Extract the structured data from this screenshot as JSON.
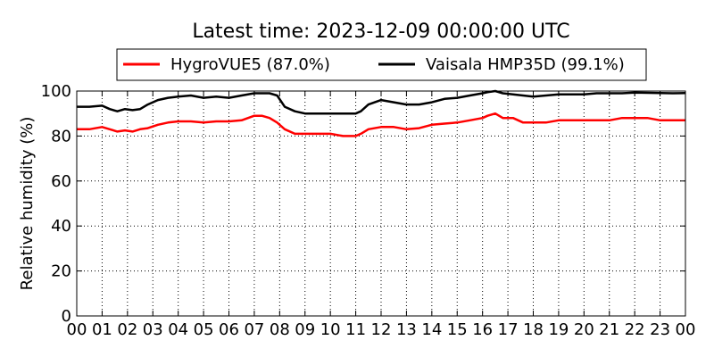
{
  "chart_data": {
    "type": "line",
    "title": "Latest time: 2023-12-09 00:00:00 UTC",
    "xlabel": "",
    "ylabel": "Relative humidity (%)",
    "xlim": [
      0,
      24
    ],
    "ylim": [
      0,
      100
    ],
    "grid": true,
    "legend_placement": "top-center",
    "x_tick_labels": [
      "00",
      "01",
      "02",
      "03",
      "04",
      "05",
      "06",
      "07",
      "08",
      "09",
      "10",
      "11",
      "12",
      "13",
      "14",
      "15",
      "16",
      "17",
      "18",
      "19",
      "20",
      "21",
      "22",
      "23",
      "00"
    ],
    "y_ticks": [
      0,
      20,
      40,
      60,
      80,
      100
    ],
    "series": [
      {
        "name": "HygroVUE5 (87.0%)",
        "color": "#ff0000",
        "x": [
          0,
          0.5,
          1,
          1.3,
          1.6,
          1.9,
          2.2,
          2.5,
          2.8,
          3.2,
          3.6,
          4,
          4.5,
          5,
          5.5,
          6,
          6.5,
          7,
          7.3,
          7.6,
          7.9,
          8.2,
          8.6,
          9,
          9.5,
          10,
          10.5,
          11,
          11.2,
          11.5,
          12,
          12.5,
          13,
          13.5,
          14,
          14.5,
          15,
          15.5,
          16,
          16.2,
          16.5,
          16.8,
          17.2,
          17.6,
          18,
          18.5,
          19,
          19.5,
          20,
          20.5,
          21,
          21.5,
          22,
          22.5,
          23,
          23.5,
          24
        ],
        "y": [
          83,
          83,
          84,
          83,
          82,
          82.5,
          82,
          83,
          83.5,
          85,
          86,
          86.5,
          86.5,
          86,
          86.5,
          86.5,
          87,
          89,
          89,
          88,
          86,
          83,
          81,
          81,
          81,
          81,
          80,
          80,
          81,
          83,
          84,
          84,
          83,
          83.5,
          85,
          85.5,
          86,
          87,
          88,
          89,
          90,
          88,
          88,
          86,
          86,
          86,
          87,
          87,
          87,
          87,
          87,
          88,
          88,
          88,
          87,
          87,
          87
        ]
      },
      {
        "name": "Vaisala HMP35D (99.1%)",
        "color": "#000000",
        "x": [
          0,
          0.5,
          1,
          1.3,
          1.6,
          1.9,
          2.2,
          2.5,
          2.8,
          3.2,
          3.6,
          4,
          4.5,
          5,
          5.5,
          6,
          6.5,
          7,
          7.3,
          7.6,
          7.9,
          8.2,
          8.6,
          9,
          9.5,
          10,
          10.5,
          11,
          11.2,
          11.5,
          12,
          12.5,
          13,
          13.5,
          14,
          14.5,
          15,
          15.5,
          16,
          16.2,
          16.5,
          16.8,
          17.2,
          17.6,
          18,
          18.5,
          19,
          19.5,
          20,
          20.5,
          21,
          21.5,
          22,
          22.5,
          23,
          23.5,
          24
        ],
        "y": [
          93,
          93,
          93.5,
          92,
          91,
          92,
          91.5,
          92,
          94,
          96,
          97,
          97.5,
          98,
          97,
          97.5,
          97,
          98,
          99,
          99,
          99,
          98,
          93,
          91,
          90,
          90,
          90,
          90,
          90,
          91,
          94,
          96,
          95,
          94,
          94,
          95,
          96.5,
          97,
          98,
          99,
          99.5,
          100,
          99,
          98.5,
          98,
          97.5,
          98,
          98.5,
          98.5,
          98.5,
          99,
          99,
          99,
          99.3,
          99.2,
          99.1,
          99,
          99.1
        ]
      }
    ]
  }
}
